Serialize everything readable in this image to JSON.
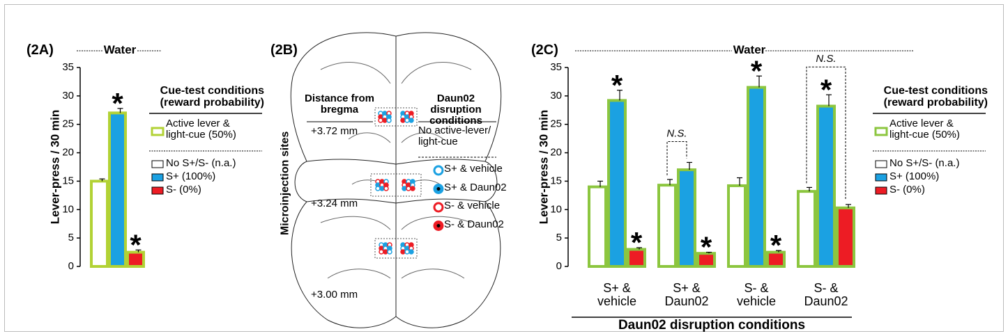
{
  "chart_data": [
    {
      "type": "bar",
      "panel_label": "(2A)",
      "title": "Water",
      "y_label": "Lever-press / 30 min",
      "categories": [
        null
      ],
      "series": [
        {
          "name": "No S+/S- (n.a.)",
          "color": "#ffffff",
          "values": [
            15
          ],
          "errors": [
            0.4
          ],
          "value_annotations": [
            null
          ]
        },
        {
          "name": "S+ (100%)",
          "color": "#1ba1e2",
          "values": [
            27
          ],
          "errors": [
            0.8
          ],
          "value_annotations": [
            "*"
          ]
        },
        {
          "name": "S- (0%)",
          "color": "#ed1c24",
          "values": [
            2.5
          ],
          "errors": [
            0.4
          ],
          "value_annotations": [
            "*"
          ]
        }
      ],
      "outline": {
        "name": "Active lever & light-cue (50%)",
        "color": "#b2d235"
      },
      "legend_title": "Cue-test conditions (reward probability)",
      "ylim": [
        0,
        35
      ],
      "yticks": [
        0,
        5,
        10,
        15,
        20,
        25,
        30,
        35
      ]
    },
    {
      "type": "bar",
      "panel_label": "(2C)",
      "title": "Water",
      "y_label": "Lever-press / 30 min",
      "x_label": "Daun02 disruption conditions",
      "categories": [
        "S+ & vehicle",
        "S+ & Daun02",
        "S- & vehicle",
        "S- & Daun02"
      ],
      "series": [
        {
          "name": "No S+/S- (n.a.)",
          "color": "#ffffff",
          "values": [
            14,
            14.3,
            14.2,
            13.2
          ],
          "errors": [
            1,
            1,
            1.4,
            0.7
          ],
          "value_annotations": [
            null,
            null,
            null,
            null
          ]
        },
        {
          "name": "S+ (100%)",
          "color": "#1ba1e2",
          "values": [
            29.2,
            17,
            31.5,
            28.2
          ],
          "errors": [
            1.8,
            1.3,
            2,
            2
          ],
          "value_annotations": [
            "*",
            null,
            "*",
            "*"
          ]
        },
        {
          "name": "S- (0%)",
          "color": "#ed1c24",
          "values": [
            3,
            2.3,
            2.5,
            10.3
          ],
          "errors": [
            0.3,
            0.2,
            0.3,
            0.6
          ],
          "value_annotations": [
            "*",
            "*",
            "*",
            null
          ]
        }
      ],
      "brackets": [
        {
          "text": "N.S.",
          "category": 1,
          "from": 0,
          "to": 1
        },
        {
          "text": "N.S.",
          "category": 3,
          "from": 0,
          "to": 2
        }
      ],
      "outline": {
        "name": "Active lever & light-cue (50%)",
        "color": "#8cc63f"
      },
      "legend_title": "Cue-test conditions (reward probability)",
      "ylim": [
        0,
        35
      ],
      "yticks": [
        0,
        5,
        10,
        15,
        20,
        25,
        30,
        35
      ]
    }
  ],
  "diagram": {
    "panel_label": "(2B)",
    "side_label": "Microinjection sites",
    "left_heading": "Distance from bregma",
    "right_heading": "Daun02 disruption conditions",
    "distances": [
      "+3.72 mm",
      "+3.24 mm",
      "+3.00 mm"
    ],
    "control_label": "No active-lever/ light-cue",
    "legend": [
      {
        "label": "S+ & vehicle",
        "color": "#1ba1e2",
        "filled": false
      },
      {
        "label": "S+ & Daun02",
        "color": "#1ba1e2",
        "filled": true
      },
      {
        "label": "S- & vehicle",
        "color": "#ed1c24",
        "filled": false
      },
      {
        "label": "S- & Daun02",
        "color": "#ed1c24",
        "filled": true
      }
    ]
  }
}
